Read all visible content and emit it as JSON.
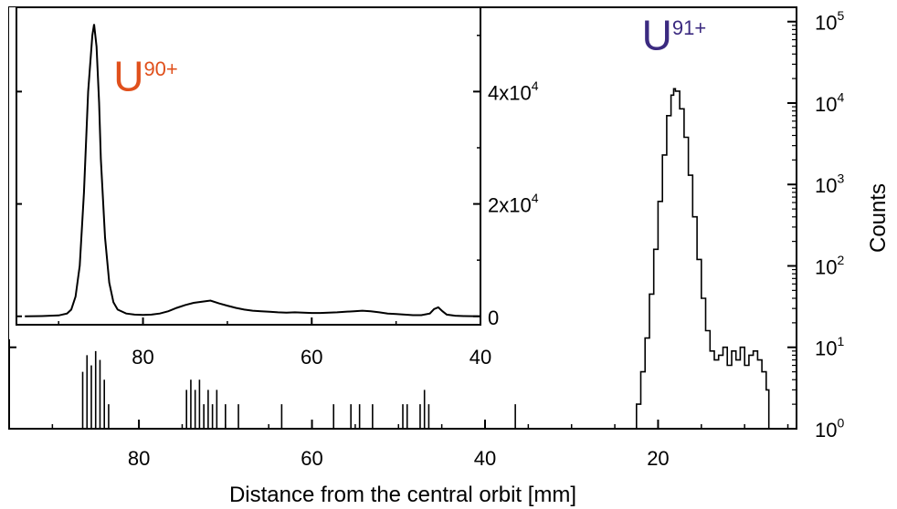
{
  "chart_data": [
    {
      "type": "line",
      "role": "main",
      "xlabel": "Distance from the central orbit [mm]",
      "ylabel": "Counts",
      "xlim": [
        95,
        4
      ],
      "ylim": [
        1,
        150000
      ],
      "yscale": "log",
      "x_ticks": [
        {
          "value": 80,
          "label": "80"
        },
        {
          "value": 60,
          "label": "60"
        },
        {
          "value": 40,
          "label": "40"
        },
        {
          "value": 20,
          "label": "20"
        }
      ],
      "y_ticks": [
        {
          "value": 1,
          "base": "10",
          "exp": "0"
        },
        {
          "value": 10,
          "base": "10",
          "exp": "1"
        },
        {
          "value": 100,
          "base": "10",
          "exp": "2"
        },
        {
          "value": 1000,
          "base": "10",
          "exp": "3"
        },
        {
          "value": 10000,
          "base": "10",
          "exp": "4"
        },
        {
          "value": 100000,
          "base": "10",
          "exp": "5"
        }
      ],
      "annotations": [
        {
          "base": "U",
          "sup": "91+",
          "color": "#3b2a80",
          "x": 18.5,
          "y": 50000
        }
      ],
      "series": [
        {
          "x": [
            23,
            22.5,
            22,
            21.5,
            21,
            20.5,
            20,
            19.5,
            19,
            18.5,
            18.2,
            18,
            17.5,
            17,
            16.5,
            16,
            15.5,
            15,
            14.5,
            14,
            13.5,
            13,
            12.5,
            12,
            11.5,
            11,
            10.5,
            10,
            9.5,
            9,
            8.5,
            8,
            7.5,
            7.2
          ],
          "y": [
            1,
            2,
            5,
            13,
            45,
            160,
            620,
            2300,
            7000,
            12500,
            15000,
            14000,
            8500,
            3800,
            1300,
            400,
            120,
            40,
            16,
            9,
            7,
            8,
            10,
            6,
            9,
            7,
            10,
            6,
            8,
            9,
            7,
            5,
            3,
            1
          ]
        }
      ],
      "events": [
        {
          "x": 86.5,
          "y": 5
        },
        {
          "x": 86,
          "y": 8
        },
        {
          "x": 85.5,
          "y": 6
        },
        {
          "x": 85,
          "y": 9
        },
        {
          "x": 84.5,
          "y": 7
        },
        {
          "x": 84,
          "y": 4
        },
        {
          "x": 83.5,
          "y": 2
        },
        {
          "x": 74.5,
          "y": 3
        },
        {
          "x": 74,
          "y": 4
        },
        {
          "x": 73.5,
          "y": 3
        },
        {
          "x": 73,
          "y": 4
        },
        {
          "x": 72.5,
          "y": 2
        },
        {
          "x": 72,
          "y": 3
        },
        {
          "x": 71.5,
          "y": 2
        },
        {
          "x": 71,
          "y": 3
        },
        {
          "x": 70,
          "y": 2
        },
        {
          "x": 68.5,
          "y": 2
        },
        {
          "x": 63.5,
          "y": 2
        },
        {
          "x": 57.5,
          "y": 2
        },
        {
          "x": 55.5,
          "y": 2
        },
        {
          "x": 54.5,
          "y": 2
        },
        {
          "x": 53,
          "y": 2
        },
        {
          "x": 49.5,
          "y": 2
        },
        {
          "x": 49,
          "y": 2
        },
        {
          "x": 47.5,
          "y": 2
        },
        {
          "x": 47,
          "y": 3
        },
        {
          "x": 46.5,
          "y": 2
        },
        {
          "x": 36.5,
          "y": 2
        }
      ]
    },
    {
      "type": "line",
      "role": "inset",
      "xlim": [
        95,
        40
      ],
      "ylim": [
        -1500,
        55000
      ],
      "yscale": "linear",
      "x_ticks": [
        {
          "value": 80,
          "label": "80"
        },
        {
          "value": 60,
          "label": "60"
        },
        {
          "value": 40,
          "label": "40"
        }
      ],
      "y_ticks": [
        {
          "value": 0,
          "mantissa": "0",
          "exp": ""
        },
        {
          "value": 20000,
          "mantissa": "2x10",
          "exp": "4"
        },
        {
          "value": 40000,
          "mantissa": "4x10",
          "exp": "4"
        }
      ],
      "annotations": [
        {
          "base": "U",
          "sup": "90+",
          "color": "#e0501c",
          "x": 83.5,
          "y": 46000
        }
      ],
      "series": [
        {
          "x": [
            94,
            92,
            90,
            89,
            88.5,
            88,
            87.5,
            87,
            86.5,
            86,
            85.8,
            85.5,
            85.2,
            85,
            84.5,
            84,
            83.5,
            83,
            82,
            81,
            80,
            79,
            78,
            77,
            76,
            75,
            74,
            73,
            72,
            71,
            70,
            69,
            68,
            67,
            66,
            65,
            64,
            63,
            62,
            61,
            60,
            59,
            58,
            57,
            56,
            55,
            54,
            53,
            52,
            51,
            50,
            49,
            48,
            47,
            46,
            45.5,
            45,
            44.5,
            44,
            43,
            42,
            41,
            40
          ],
          "y": [
            0,
            50,
            150,
            500,
            1200,
            3500,
            9000,
            22000,
            40000,
            50000,
            52000,
            48000,
            38000,
            28000,
            14000,
            6000,
            2500,
            1200,
            500,
            300,
            250,
            300,
            500,
            900,
            1500,
            2000,
            2400,
            2600,
            2800,
            2300,
            1900,
            1500,
            1200,
            1000,
            900,
            800,
            700,
            650,
            700,
            650,
            600,
            600,
            650,
            700,
            800,
            900,
            1000,
            900,
            700,
            500,
            400,
            300,
            200,
            200,
            500,
            1300,
            1600,
            900,
            300,
            100,
            50,
            20,
            0
          ]
        }
      ]
    }
  ]
}
